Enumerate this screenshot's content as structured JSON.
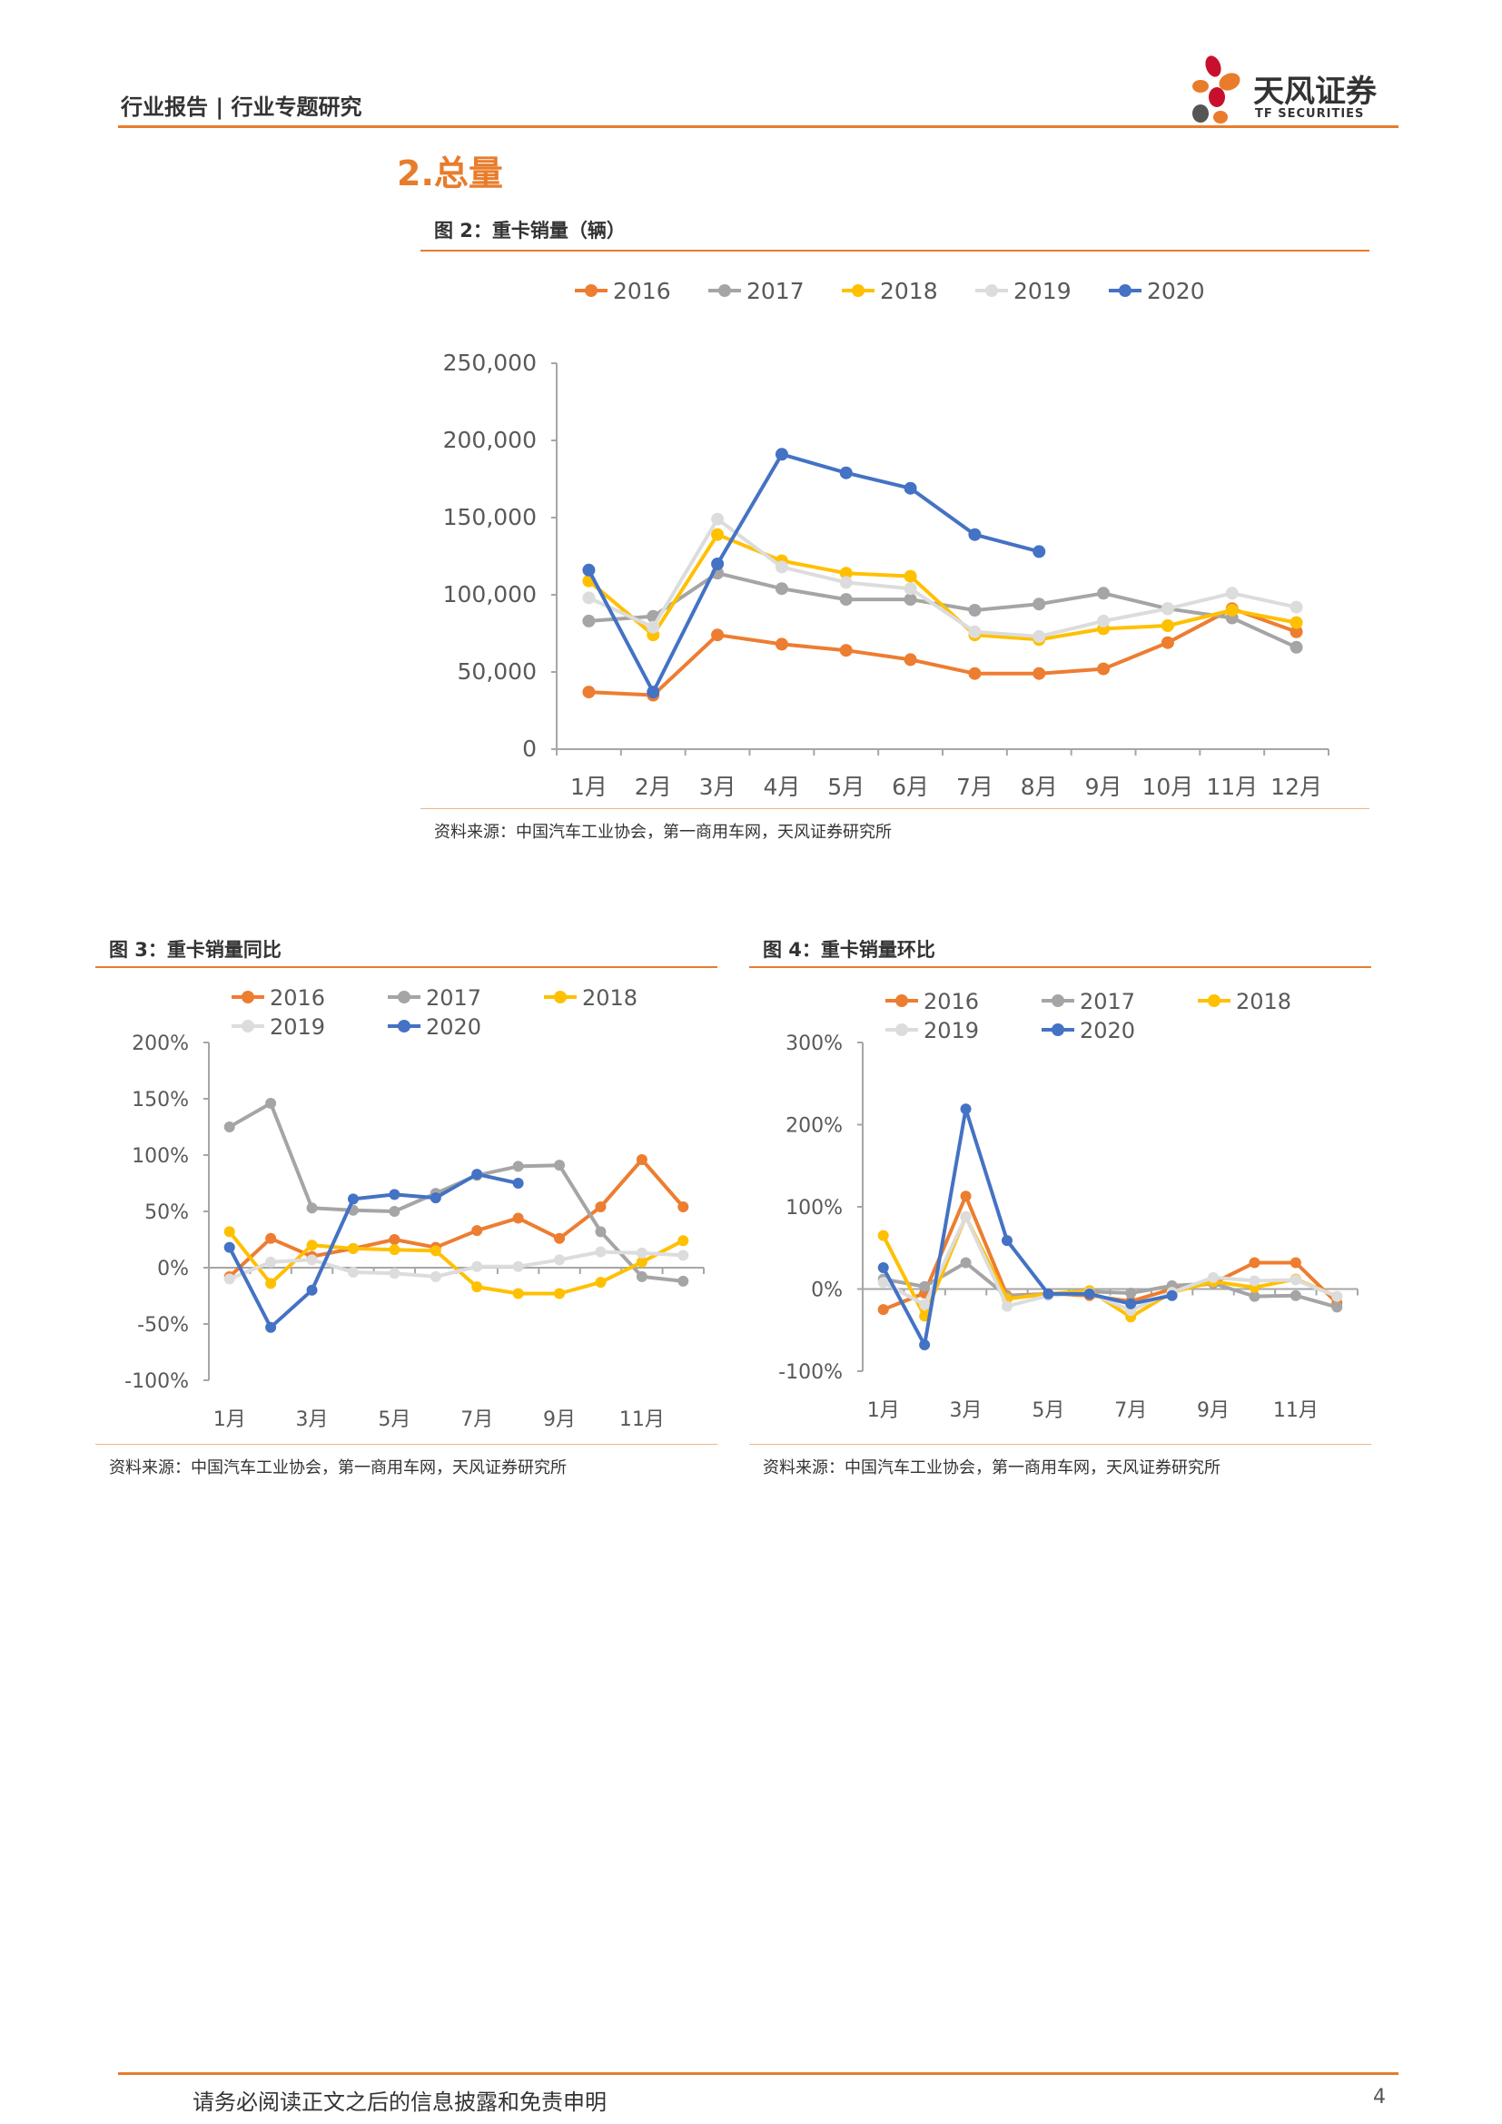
{
  "header": {
    "title": "行业报告 | 行业专题研究"
  },
  "logo": {
    "name_cn": "天风证券",
    "name_en": "TF SECURITIES"
  },
  "section": {
    "title": "2.总量"
  },
  "colors": {
    "2016": "#ED7D31",
    "2017": "#A5A5A5",
    "2018": "#FFC000",
    "2019": "#DCDCDC",
    "2020": "#4472C4",
    "accent": "#E87C2B"
  },
  "figures": {
    "fig2": {
      "title": "图 2：重卡销量（辆）",
      "source": "资料来源：中国汽车工业协会，第一商用车网，天风证券研究所"
    },
    "fig3": {
      "title": "图 3：重卡销量同比",
      "source": "资料来源：中国汽车工业协会，第一商用车网，天风证券研究所"
    },
    "fig4": {
      "title": "图 4：重卡销量环比",
      "source": "资料来源：中国汽车工业协会，第一商用车网，天风证券研究所"
    }
  },
  "chart_data": [
    {
      "id": "fig2",
      "type": "line",
      "categories": [
        "1月",
        "2月",
        "3月",
        "4月",
        "5月",
        "6月",
        "7月",
        "8月",
        "9月",
        "10月",
        "11月",
        "12月"
      ],
      "ylim": [
        0,
        250000
      ],
      "yticks": [
        "0",
        "50,000",
        "100,000",
        "150,000",
        "200,000",
        "250,000"
      ],
      "legend_position": "top",
      "grid": false,
      "series": [
        {
          "name": "2016",
          "values": [
            37000,
            35000,
            74000,
            68000,
            64000,
            58000,
            49000,
            49000,
            52000,
            69000,
            91000,
            76000
          ]
        },
        {
          "name": "2017",
          "values": [
            83000,
            86000,
            114000,
            104000,
            97000,
            97000,
            90000,
            94000,
            101000,
            91000,
            85000,
            66000
          ]
        },
        {
          "name": "2018",
          "values": [
            109000,
            74000,
            139000,
            122000,
            114000,
            112000,
            74000,
            71000,
            78000,
            80000,
            90000,
            82000
          ]
        },
        {
          "name": "2019",
          "values": [
            98000,
            79000,
            149000,
            118000,
            108000,
            104000,
            76000,
            73000,
            83000,
            91000,
            101000,
            92000
          ]
        },
        {
          "name": "2020",
          "values": [
            116000,
            37000,
            120000,
            191000,
            179000,
            169000,
            139000,
            128000,
            null,
            null,
            null,
            null
          ]
        }
      ]
    },
    {
      "id": "fig3",
      "type": "line",
      "categories": [
        "1月",
        "2月",
        "3月",
        "4月",
        "5月",
        "6月",
        "7月",
        "8月",
        "9月",
        "10月",
        "11月",
        "12月"
      ],
      "xticks_shown": [
        "1月",
        "3月",
        "5月",
        "7月",
        "9月",
        "11月"
      ],
      "ylim": [
        -100,
        200
      ],
      "yticks": [
        "-100%",
        "-50%",
        "0%",
        "50%",
        "100%",
        "150%",
        "200%"
      ],
      "legend_position": "top",
      "grid": false,
      "series": [
        {
          "name": "2016",
          "values": [
            -8,
            26,
            10,
            17,
            25,
            18,
            33,
            44,
            26,
            54,
            96,
            54
          ]
        },
        {
          "name": "2017",
          "values": [
            125,
            146,
            53,
            51,
            50,
            66,
            82,
            90,
            91,
            32,
            -8,
            -12
          ]
        },
        {
          "name": "2018",
          "values": [
            32,
            -14,
            20,
            17,
            16,
            15,
            -17,
            -23,
            -23,
            -13,
            5,
            24
          ]
        },
        {
          "name": "2019",
          "values": [
            -10,
            5,
            7,
            -4,
            -5,
            -8,
            1,
            1,
            7,
            14,
            13,
            11
          ]
        },
        {
          "name": "2020",
          "values": [
            18,
            -53,
            -20,
            61,
            65,
            62,
            83,
            75,
            null,
            null,
            null,
            null
          ]
        }
      ]
    },
    {
      "id": "fig4",
      "type": "line",
      "categories": [
        "1月",
        "2月",
        "3月",
        "4月",
        "5月",
        "6月",
        "7月",
        "8月",
        "9月",
        "10月",
        "11月",
        "12月"
      ],
      "xticks_shown": [
        "1月",
        "3月",
        "5月",
        "7月",
        "9月",
        "11月"
      ],
      "ylim": [
        -100,
        300
      ],
      "yticks": [
        "-100%",
        "0%",
        "100%",
        "200%",
        "300%"
      ],
      "legend_position": "top",
      "grid": false,
      "series": [
        {
          "name": "2016",
          "values": [
            -25,
            -5,
            113,
            -8,
            -6,
            -8,
            -15,
            0,
            7,
            32,
            32,
            -17
          ]
        },
        {
          "name": "2017",
          "values": [
            12,
            3,
            32,
            -9,
            -6,
            -3,
            -5,
            4,
            7,
            -9,
            -8,
            -22
          ]
        },
        {
          "name": "2018",
          "values": [
            65,
            -33,
            88,
            -12,
            -6,
            -2,
            -34,
            -4,
            9,
            2,
            12,
            -9
          ]
        },
        {
          "name": "2019",
          "values": [
            8,
            -19,
            88,
            -21,
            -8,
            -5,
            -26,
            -4,
            14,
            10,
            11,
            -9
          ]
        },
        {
          "name": "2020",
          "values": [
            26,
            -68,
            219,
            59,
            -6,
            -6,
            -18,
            -8,
            null,
            null,
            null,
            null
          ]
        }
      ]
    }
  ],
  "footer": {
    "text": "请务必阅读正文之后的信息披露和免责申明",
    "page": "4"
  }
}
